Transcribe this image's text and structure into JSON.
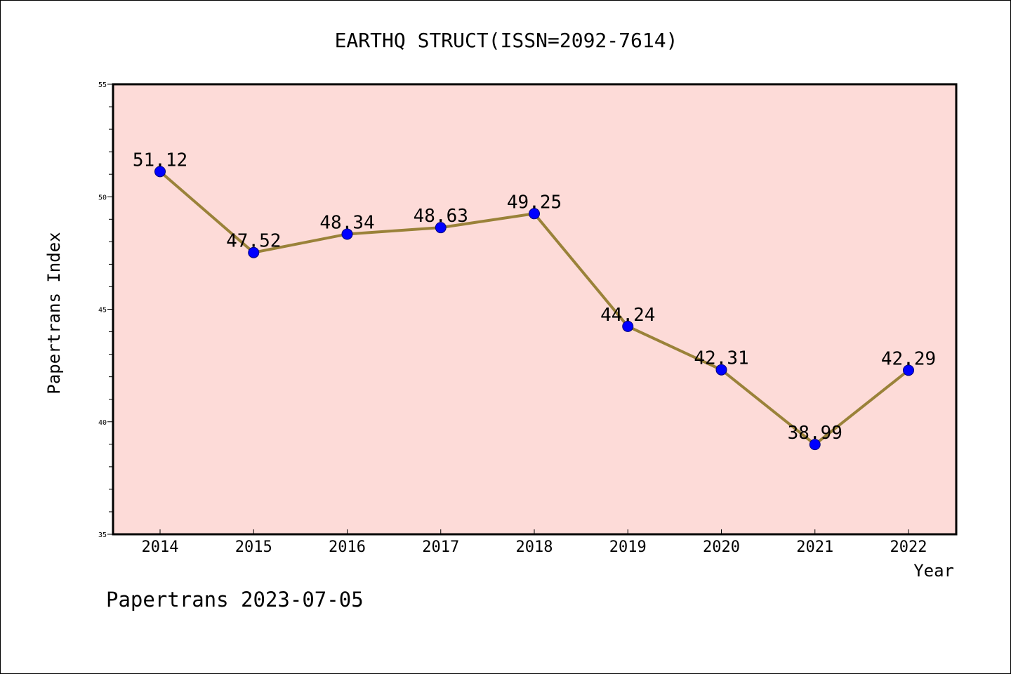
{
  "chart_data": {
    "type": "line",
    "title": "EARTHQ STRUCT(ISSN=2092-7614)",
    "xlabel": "Year",
    "ylabel": "Papertrans Index",
    "footer": "Papertrans 2023-07-05",
    "categories": [
      "2014",
      "2015",
      "2016",
      "2017",
      "2018",
      "2019",
      "2020",
      "2021",
      "2022"
    ],
    "values": [
      51.12,
      47.52,
      48.34,
      48.63,
      49.25,
      44.24,
      42.31,
      38.99,
      42.29
    ],
    "data_labels": [
      "51.12",
      "47.52",
      "48.34",
      "48.63",
      "49.25",
      "44.24",
      "42.31",
      "38.99",
      "42.29"
    ],
    "ylim": [
      35,
      55
    ],
    "yticks": [
      "35",
      "40",
      "45",
      "50",
      "55"
    ],
    "grid": false,
    "legend": "none",
    "colors": {
      "plot_background": "#fddbd8",
      "line": "#9a8239",
      "marker": "#0000ff",
      "marker_edge": "#00007a"
    }
  }
}
